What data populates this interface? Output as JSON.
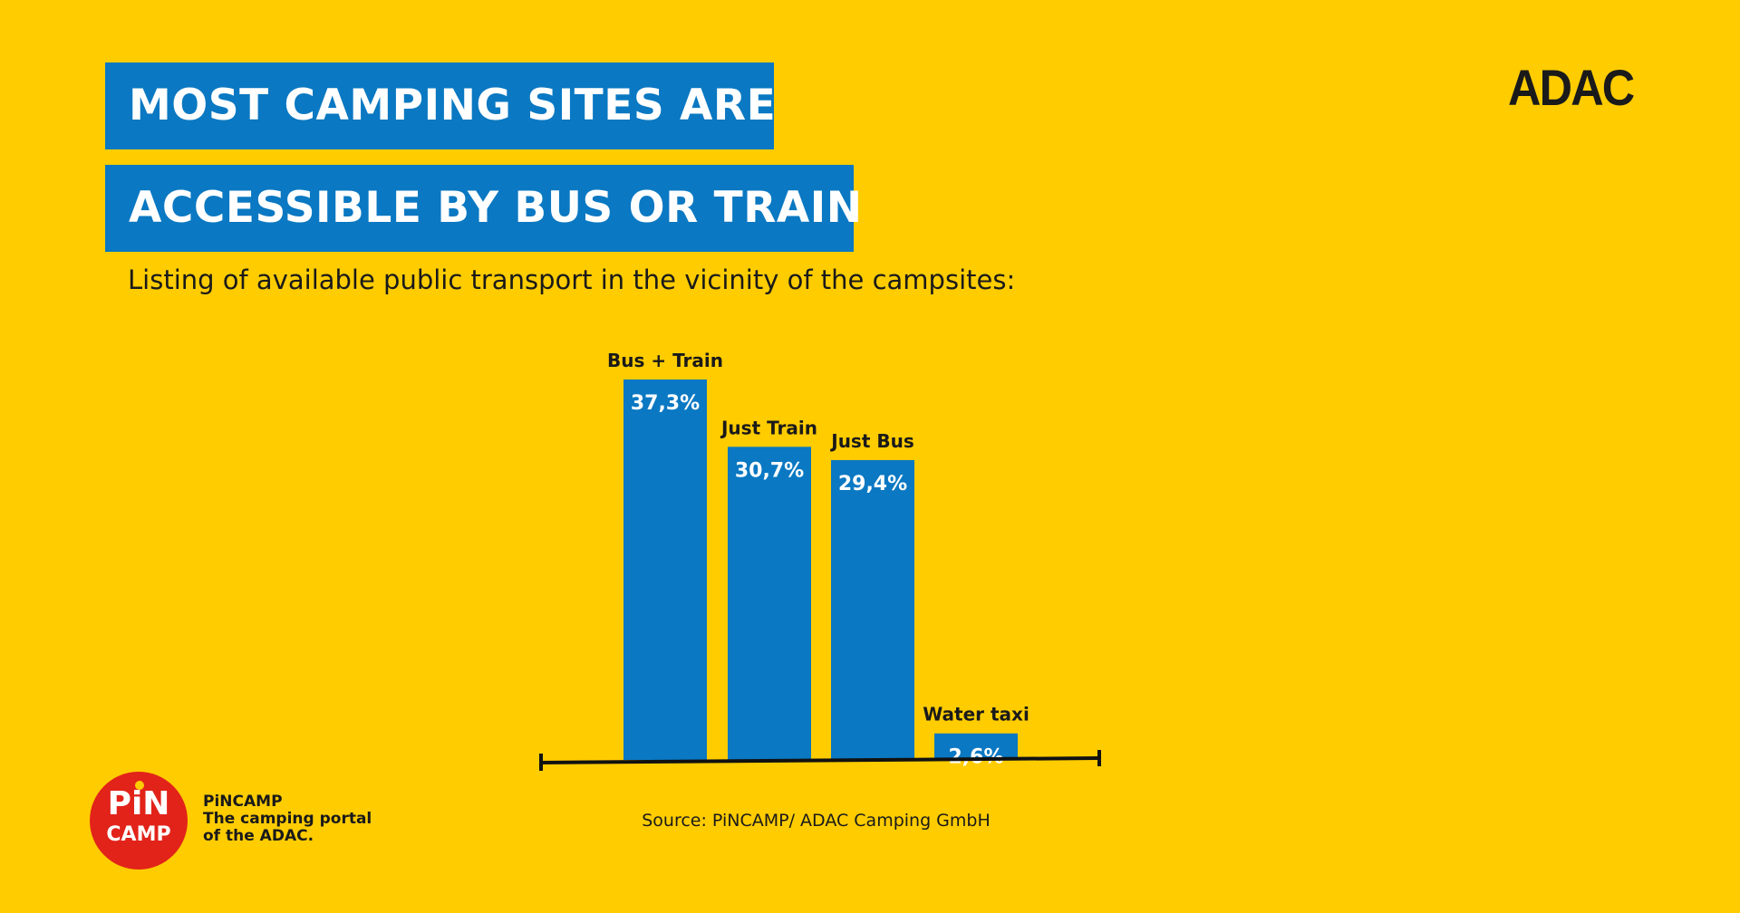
{
  "title_line1": "MOST CAMPING SITES ARE",
  "title_line2": "ACCESSIBLE BY BUS OR TRAIN",
  "subtitle": "Listing of available public transport in the vicinity of the campsites:",
  "brand_logo": "ADAC",
  "source": "Source: PiNCAMP/ ADAC Camping GmbH",
  "pincamp": {
    "logo_top": "PiN",
    "logo_bottom": "CAMP",
    "name": "PiNCAMP",
    "tagline1": "The camping portal",
    "tagline2": "of the ADAC."
  },
  "colors": {
    "background": "#FFCC00",
    "bar": "#0A78C2",
    "title_box": "#0A78C2",
    "pincamp_red": "#E2231A"
  },
  "chart_data": {
    "type": "bar",
    "categories": [
      "Bus + Train",
      "Just Train",
      "Just Bus",
      "Water taxi"
    ],
    "values": [
      37.3,
      30.7,
      29.4,
      2.6
    ],
    "value_labels": [
      "37,3%",
      "30,7%",
      "29,4%",
      "2,6%"
    ],
    "unit": "%",
    "ylim": [
      0,
      37.3
    ],
    "grid": false,
    "legend": "none"
  }
}
